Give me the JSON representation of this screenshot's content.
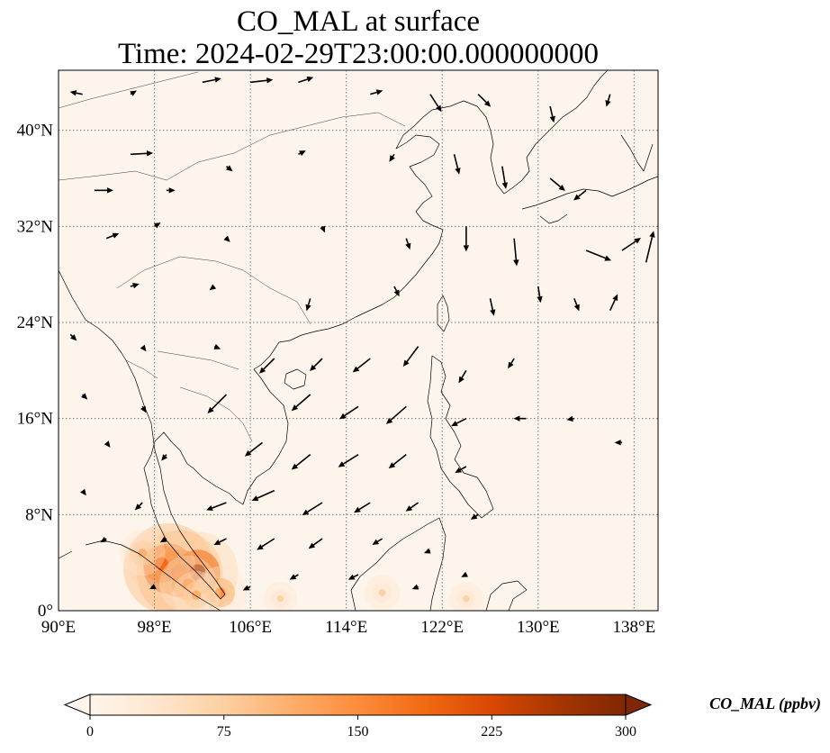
{
  "title": {
    "line1": "CO_MAL at surface",
    "line2": "Time: 2024-02-29T23:00:00.000000000"
  },
  "map": {
    "extent": {
      "lon_min": 90,
      "lon_max": 140,
      "lat_min": 0,
      "lat_max": 45
    },
    "background_color": "#fdf5eb",
    "gridline_style": "dotted",
    "lon_ticks": [
      {
        "value": 90,
        "label": "90°E"
      },
      {
        "value": 98,
        "label": "98°E"
      },
      {
        "value": 106,
        "label": "106°E"
      },
      {
        "value": 114,
        "label": "114°E"
      },
      {
        "value": 122,
        "label": "122°E"
      },
      {
        "value": 130,
        "label": "130°E"
      },
      {
        "value": 138,
        "label": "138°E"
      }
    ],
    "lat_ticks": [
      {
        "value": 0,
        "label": "0°"
      },
      {
        "value": 8,
        "label": "8°N"
      },
      {
        "value": 16,
        "label": "16°N"
      },
      {
        "value": 24,
        "label": "24°N"
      },
      {
        "value": 32,
        "label": "32°N"
      },
      {
        "value": 40,
        "label": "40°N"
      }
    ],
    "hotspots": [
      {
        "lon": 99.2,
        "lat": 3.5,
        "ppbv": 300
      },
      {
        "lon": 100.1,
        "lat": 3.1,
        "ppbv": 280
      },
      {
        "lon": 101.6,
        "lat": 3.2,
        "ppbv": 260
      },
      {
        "lon": 98.6,
        "lat": 3.9,
        "ppbv": 200
      },
      {
        "lon": 100.8,
        "lat": 2.2,
        "ppbv": 160
      },
      {
        "lon": 103.5,
        "lat": 1.5,
        "ppbv": 140
      },
      {
        "lon": 97.0,
        "lat": 4.8,
        "ppbv": 110
      },
      {
        "lon": 101.5,
        "lat": 1.3,
        "ppbv": 120
      },
      {
        "lon": 117.0,
        "lat": 1.5,
        "ppbv": 70
      },
      {
        "lon": 108.5,
        "lat": 1.0,
        "ppbv": 60
      },
      {
        "lon": 124.0,
        "lat": 1.0,
        "ppbv": 60
      }
    ],
    "wind_vectors": [
      {
        "lon": 92,
        "lat": 43,
        "u": -1.0,
        "v": 0.2
      },
      {
        "lon": 96,
        "lat": 43,
        "u": 0.5,
        "v": 0.3
      },
      {
        "lon": 102,
        "lat": 44,
        "u": 1.5,
        "v": 0.3
      },
      {
        "lon": 106,
        "lat": 44,
        "u": 1.8,
        "v": 0.2
      },
      {
        "lon": 110,
        "lat": 44,
        "u": 1.2,
        "v": 0.4
      },
      {
        "lon": 116,
        "lat": 43,
        "u": 1.0,
        "v": 0.3
      },
      {
        "lon": 121,
        "lat": 43,
        "u": 0.9,
        "v": -1.4
      },
      {
        "lon": 125,
        "lat": 43,
        "u": 1.0,
        "v": -1.0
      },
      {
        "lon": 131,
        "lat": 42,
        "u": 0.3,
        "v": -1.3
      },
      {
        "lon": 136,
        "lat": 43,
        "u": -0.3,
        "v": -1.0
      },
      {
        "lon": 93,
        "lat": 35,
        "u": 1.5,
        "v": 0.0
      },
      {
        "lon": 96,
        "lat": 38,
        "u": 1.8,
        "v": 0.1
      },
      {
        "lon": 99,
        "lat": 35,
        "u": 0.7,
        "v": 0.0
      },
      {
        "lon": 104,
        "lat": 37,
        "u": 0.5,
        "v": -0.4
      },
      {
        "lon": 110,
        "lat": 38,
        "u": 0.6,
        "v": 0.3
      },
      {
        "lon": 118,
        "lat": 38,
        "u": -0.4,
        "v": -0.6
      },
      {
        "lon": 123,
        "lat": 38,
        "u": 0.4,
        "v": -1.6
      },
      {
        "lon": 127,
        "lat": 37,
        "u": 0.3,
        "v": -1.8
      },
      {
        "lon": 131,
        "lat": 36,
        "u": 1.2,
        "v": -1.0
      },
      {
        "lon": 134,
        "lat": 35,
        "u": -1.0,
        "v": -0.8
      },
      {
        "lon": 94,
        "lat": 31,
        "u": 1.0,
        "v": 0.4
      },
      {
        "lon": 98,
        "lat": 32,
        "u": 0.5,
        "v": 0.3
      },
      {
        "lon": 104,
        "lat": 31,
        "u": 0.3,
        "v": -0.3
      },
      {
        "lon": 112,
        "lat": 32,
        "u": 0.2,
        "v": -0.5
      },
      {
        "lon": 119,
        "lat": 31,
        "u": 0.3,
        "v": -0.9
      },
      {
        "lon": 124,
        "lat": 32,
        "u": 0.0,
        "v": -2.0
      },
      {
        "lon": 128,
        "lat": 31,
        "u": 0.2,
        "v": -2.2
      },
      {
        "lon": 134,
        "lat": 30,
        "u": 2.0,
        "v": -0.8
      },
      {
        "lon": 137,
        "lat": 30,
        "u": 1.5,
        "v": 1.0
      },
      {
        "lon": 139,
        "lat": 29,
        "u": 0.6,
        "v": 2.5
      },
      {
        "lon": 96,
        "lat": 27,
        "u": 0.7,
        "v": 0.2
      },
      {
        "lon": 103,
        "lat": 27,
        "u": -0.4,
        "v": -0.3
      },
      {
        "lon": 111,
        "lat": 26,
        "u": -0.3,
        "v": -1.0
      },
      {
        "lon": 118,
        "lat": 27,
        "u": 0.4,
        "v": -0.8
      },
      {
        "lon": 126,
        "lat": 26,
        "u": 0.3,
        "v": -1.4
      },
      {
        "lon": 130,
        "lat": 27,
        "u": 0.2,
        "v": -1.3
      },
      {
        "lon": 133,
        "lat": 26,
        "u": 0.4,
        "v": -1.0
      },
      {
        "lon": 136,
        "lat": 25,
        "u": 0.6,
        "v": 1.3
      },
      {
        "lon": 91,
        "lat": 23,
        "u": 0.5,
        "v": -0.5
      },
      {
        "lon": 97,
        "lat": 22,
        "u": 0.3,
        "v": -0.4
      },
      {
        "lon": 103,
        "lat": 22,
        "u": 0.5,
        "v": -0.2
      },
      {
        "lon": 108,
        "lat": 21,
        "u": -1.2,
        "v": -1.2
      },
      {
        "lon": 112,
        "lat": 21,
        "u": -1.0,
        "v": -1.0
      },
      {
        "lon": 116,
        "lat": 21,
        "u": -1.4,
        "v": -1.1
      },
      {
        "lon": 120,
        "lat": 22,
        "u": -1.2,
        "v": -1.6
      },
      {
        "lon": 124,
        "lat": 20,
        "u": -0.6,
        "v": -1.0
      },
      {
        "lon": 128,
        "lat": 21,
        "u": -0.5,
        "v": -0.8
      },
      {
        "lon": 92,
        "lat": 18,
        "u": 0.4,
        "v": -0.4
      },
      {
        "lon": 97,
        "lat": 17,
        "u": 0.3,
        "v": -0.5
      },
      {
        "lon": 104,
        "lat": 18,
        "u": -1.5,
        "v": -1.5
      },
      {
        "lon": 111,
        "lat": 18,
        "u": -1.5,
        "v": -1.3
      },
      {
        "lon": 115,
        "lat": 17,
        "u": -1.5,
        "v": -1.0
      },
      {
        "lon": 119,
        "lat": 17,
        "u": -1.6,
        "v": -1.4
      },
      {
        "lon": 124,
        "lat": 16,
        "u": -1.2,
        "v": -0.6
      },
      {
        "lon": 129,
        "lat": 16,
        "u": -1.0,
        "v": 0.0
      },
      {
        "lon": 133,
        "lat": 16,
        "u": -0.6,
        "v": -0.1
      },
      {
        "lon": 94,
        "lat": 14,
        "u": 0.3,
        "v": -0.4
      },
      {
        "lon": 99,
        "lat": 13,
        "u": -0.4,
        "v": -0.5
      },
      {
        "lon": 107,
        "lat": 14,
        "u": -1.4,
        "v": -1.1
      },
      {
        "lon": 111,
        "lat": 13,
        "u": -1.5,
        "v": -1.2
      },
      {
        "lon": 115,
        "lat": 13,
        "u": -1.6,
        "v": -1.0
      },
      {
        "lon": 119,
        "lat": 13,
        "u": -1.4,
        "v": -1.1
      },
      {
        "lon": 124,
        "lat": 12,
        "u": -0.9,
        "v": -0.5
      },
      {
        "lon": 137,
        "lat": 14,
        "u": -0.6,
        "v": 0.0
      },
      {
        "lon": 92,
        "lat": 10,
        "u": 0.3,
        "v": -0.4
      },
      {
        "lon": 97,
        "lat": 9,
        "u": -0.6,
        "v": -0.6
      },
      {
        "lon": 104,
        "lat": 9,
        "u": -1.6,
        "v": -0.6
      },
      {
        "lon": 108,
        "lat": 10,
        "u": -1.8,
        "v": -0.8
      },
      {
        "lon": 112,
        "lat": 9,
        "u": -1.6,
        "v": -1.0
      },
      {
        "lon": 116,
        "lat": 9,
        "u": -1.3,
        "v": -0.8
      },
      {
        "lon": 120,
        "lat": 9,
        "u": -1.0,
        "v": -0.7
      },
      {
        "lon": 125,
        "lat": 8,
        "u": -0.6,
        "v": -0.4
      },
      {
        "lon": 94,
        "lat": 6,
        "u": -0.5,
        "v": -0.3
      },
      {
        "lon": 99,
        "lat": 6,
        "u": -0.5,
        "v": -0.3
      },
      {
        "lon": 104,
        "lat": 6,
        "u": -1.0,
        "v": -0.5
      },
      {
        "lon": 108,
        "lat": 6,
        "u": -1.4,
        "v": -0.9
      },
      {
        "lon": 112,
        "lat": 6,
        "u": -1.1,
        "v": -0.8
      },
      {
        "lon": 117,
        "lat": 6,
        "u": -0.8,
        "v": -0.5
      },
      {
        "lon": 121,
        "lat": 5,
        "u": -0.5,
        "v": -0.2
      },
      {
        "lon": 98,
        "lat": 2,
        "u": -0.4,
        "v": -0.2
      },
      {
        "lon": 106,
        "lat": 2,
        "u": -0.6,
        "v": -0.3
      },
      {
        "lon": 110,
        "lat": 3,
        "u": -0.7,
        "v": -0.4
      },
      {
        "lon": 115,
        "lat": 3,
        "u": -0.8,
        "v": -0.4
      },
      {
        "lon": 120,
        "lat": 2,
        "u": -0.5,
        "v": -0.2
      },
      {
        "lon": 124,
        "lat": 3,
        "u": -0.4,
        "v": -0.2
      }
    ]
  },
  "colorbar": {
    "label": "CO_MAL (ppbv)",
    "min": 0,
    "max": 300,
    "ticks": [
      {
        "value": 0,
        "label": "0"
      },
      {
        "value": 75,
        "label": "75"
      },
      {
        "value": 150,
        "label": "150"
      },
      {
        "value": 225,
        "label": "225"
      },
      {
        "value": 300,
        "label": "300"
      }
    ],
    "colormap": [
      "#fff5eb",
      "#fee6ce",
      "#fdd0a2",
      "#fdae6b",
      "#fd8d3c",
      "#f16913",
      "#d94801",
      "#a63603",
      "#7f2704"
    ],
    "extend": "both"
  }
}
